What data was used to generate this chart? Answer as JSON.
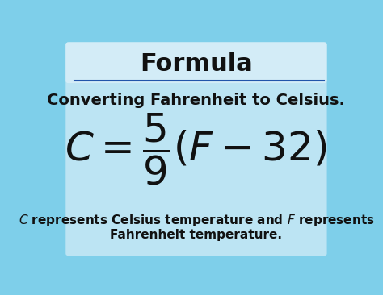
{
  "title": "Formula",
  "subtitle": "Converting Fahrenheit to Celsius.",
  "description_line1": "$C$ represents Celsius temperature and $F$ represents",
  "description_line2": "Fahrenheit temperature.",
  "bg_outer_color": "#7ecfea",
  "inner_box_color": "#c8e8f5",
  "title_bg_color": "#d6eef8",
  "divider_color": "#2255aa",
  "title_fontsize": 22,
  "subtitle_fontsize": 14,
  "formula_fontsize": 36,
  "desc_fontsize": 11,
  "text_color": "#111111"
}
